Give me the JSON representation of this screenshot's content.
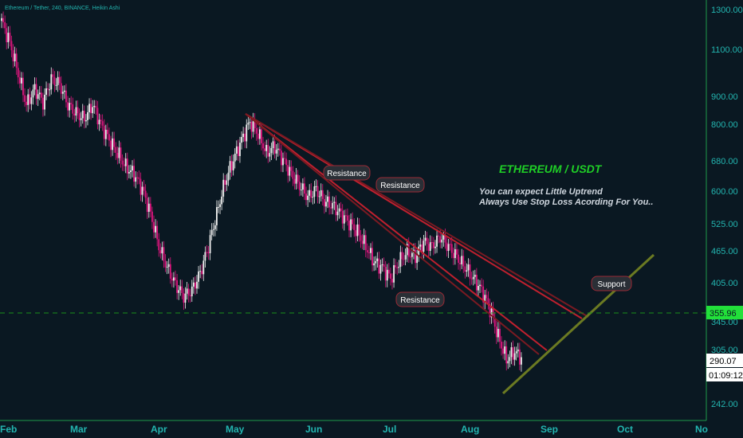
{
  "chart_data": {
    "type": "candlestick",
    "title": "Ethereum / Tether, 240, BINANCE, Heikin Ashi",
    "price_ticks": [
      "1300.00",
      "1100.00",
      "900.00",
      "800.00",
      "680.00",
      "600.00",
      "525.00",
      "465.00",
      "405.00",
      "345.00",
      "305.00",
      "242.00"
    ],
    "month_ticks": [
      "Feb",
      "Mar",
      "Apr",
      "May",
      "Jun",
      "Jul",
      "Aug",
      "Sep",
      "Oct",
      "No"
    ],
    "price_badge_last": "290.07",
    "price_badge_level": "355.96",
    "countdown": "01:09:12",
    "annotation_title": "ETHEREUM / USDT",
    "annotation_line1": "You can expect Little Uptrend",
    "annotation_line2": "Always Use Stop Loss Acording For You..",
    "labels": [
      "Resistance",
      "Resistance",
      "Resistance",
      "Support"
    ],
    "horizontal_level": 355.96,
    "series_close": [
      1230,
      1120,
      980,
      860,
      920,
      870,
      960,
      940,
      860,
      830,
      810,
      860,
      790,
      740,
      700,
      660,
      640,
      600,
      540,
      470,
      430,
      400,
      380,
      390,
      420,
      470,
      540,
      620,
      680,
      740,
      800,
      760,
      700,
      720,
      680,
      640,
      610,
      580,
      600,
      570,
      560,
      540,
      520,
      500,
      470,
      440,
      430,
      410,
      440,
      460,
      450,
      480,
      470,
      490,
      470,
      450,
      430,
      410,
      390,
      360,
      320,
      290,
      300,
      290
    ],
    "colors": {
      "bull": "#f1f1f1",
      "bear": "#e0157f",
      "resistance": "#c0202e",
      "support": "#6b7a22",
      "annotation": "#1fcf26",
      "axis": "#23b5b0"
    }
  }
}
